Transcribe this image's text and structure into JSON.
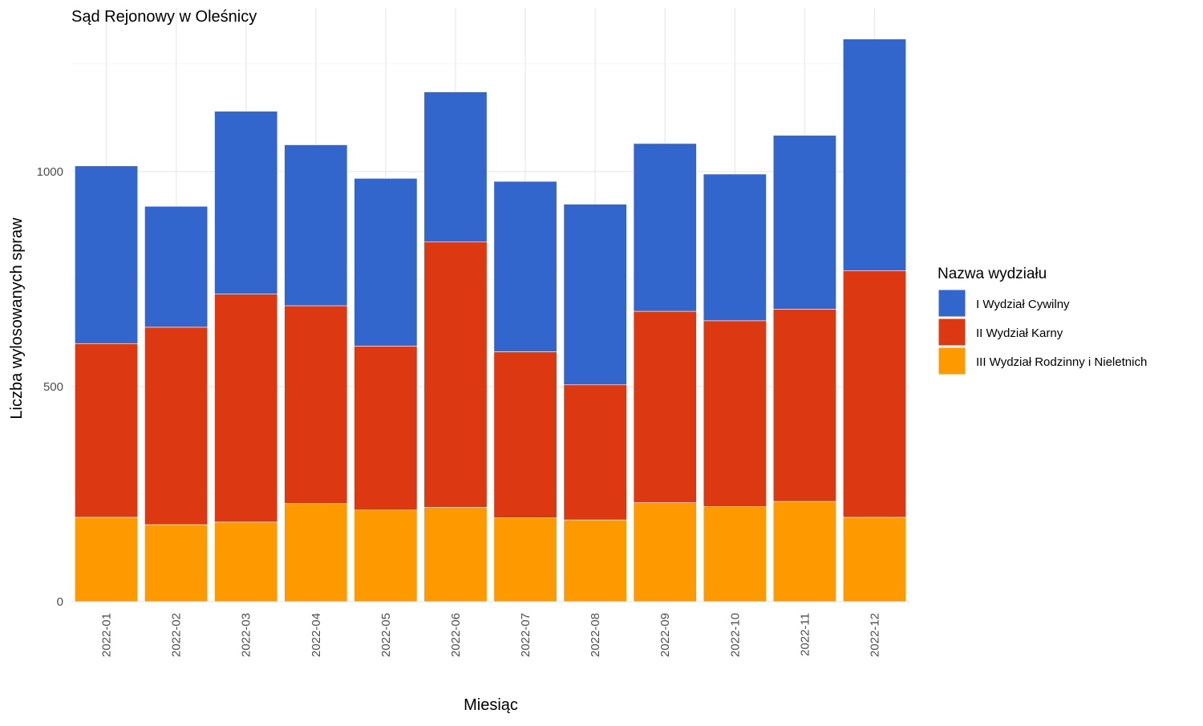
{
  "chart_data": {
    "type": "bar",
    "stacked": true,
    "title": "Sąd Rejonowy w Oleśnicy",
    "xlabel": "Miesiąc",
    "ylabel": "Liczba wylosowanych spraw",
    "ylim": [
      0,
      1380
    ],
    "yticks": [
      0,
      500,
      1000
    ],
    "grid": true,
    "legend_title": "Nazwa wydziału",
    "legend_position": "right",
    "categories": [
      "2022-01",
      "2022-02",
      "2022-03",
      "2022-04",
      "2022-05",
      "2022-06",
      "2022-07",
      "2022-08",
      "2022-09",
      "2022-10",
      "2022-11",
      "2022-12"
    ],
    "series": [
      {
        "name": "III Wydział Rodzinny i Nieletnich",
        "color": "#FF9900",
        "values": [
          196,
          179,
          185,
          228,
          213,
          219,
          195,
          190,
          230,
          221,
          233,
          196
        ]
      },
      {
        "name": "II Wydział Karny",
        "color": "#DC3912",
        "values": [
          404,
          459,
          530,
          460,
          381,
          617,
          386,
          314,
          445,
          432,
          447,
          573
        ]
      },
      {
        "name": "I Wydział Cywilny",
        "color": "#3366CC",
        "values": [
          413,
          281,
          425,
          374,
          390,
          349,
          396,
          420,
          390,
          341,
          404,
          539
        ]
      }
    ]
  }
}
